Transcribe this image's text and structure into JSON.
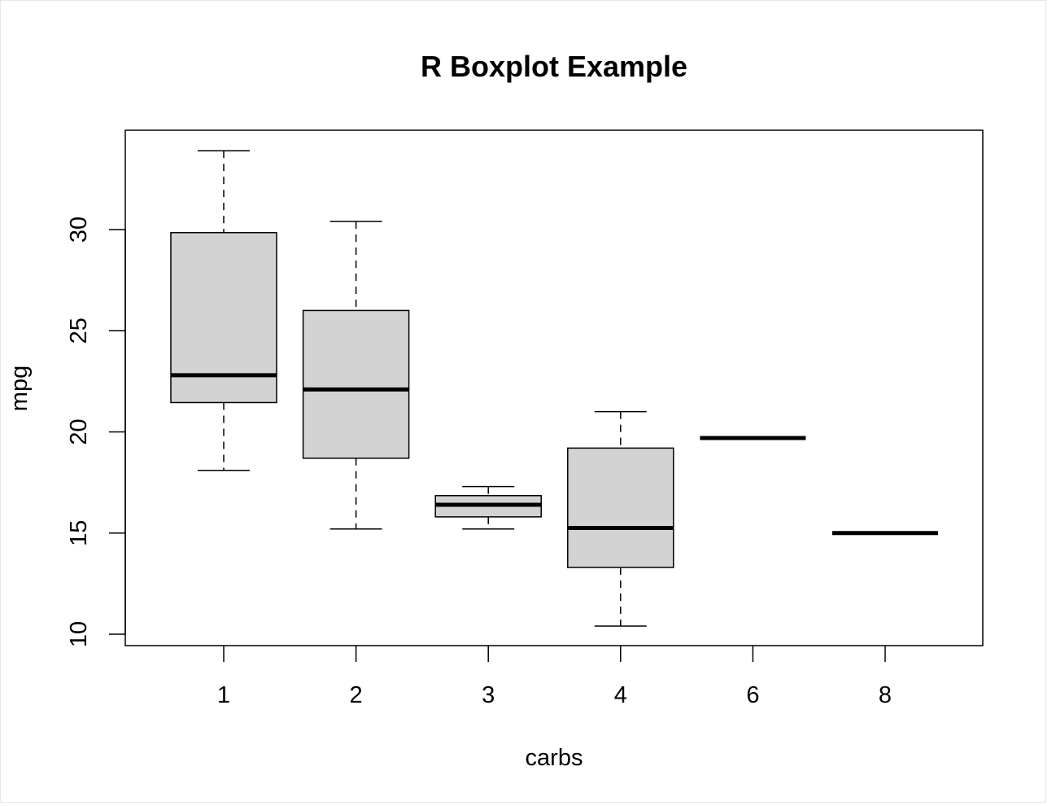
{
  "chart_data": {
    "type": "box",
    "title": "R Boxplot Example",
    "xlabel": "carbs",
    "ylabel": "mpg",
    "ylim": [
      9.5,
      35
    ],
    "yticks": [
      10,
      15,
      20,
      25,
      30
    ],
    "grid": false,
    "legend": "none",
    "box_fill": "#d3d3d3",
    "line_color": "#000000",
    "categories": [
      "1",
      "2",
      "3",
      "4",
      "6",
      "8"
    ],
    "boxes": [
      {
        "label": "1",
        "whisker_low": 18.1,
        "q1": 21.45,
        "median": 22.8,
        "q3": 29.85,
        "whisker_high": 33.9
      },
      {
        "label": "2",
        "whisker_low": 15.2,
        "q1": 18.7,
        "median": 22.1,
        "q3": 26.0,
        "whisker_high": 30.4
      },
      {
        "label": "3",
        "whisker_low": 15.2,
        "q1": 15.8,
        "median": 16.4,
        "q3": 16.85,
        "whisker_high": 17.3
      },
      {
        "label": "4",
        "whisker_low": 10.4,
        "q1": 13.3,
        "median": 15.25,
        "q3": 19.2,
        "whisker_high": 21.0
      },
      {
        "label": "6",
        "whisker_low": 19.7,
        "q1": 19.7,
        "median": 19.7,
        "q3": 19.7,
        "whisker_high": 19.7
      },
      {
        "label": "8",
        "whisker_low": 15.0,
        "q1": 15.0,
        "median": 15.0,
        "q3": 15.0,
        "whisker_high": 15.0
      }
    ]
  }
}
